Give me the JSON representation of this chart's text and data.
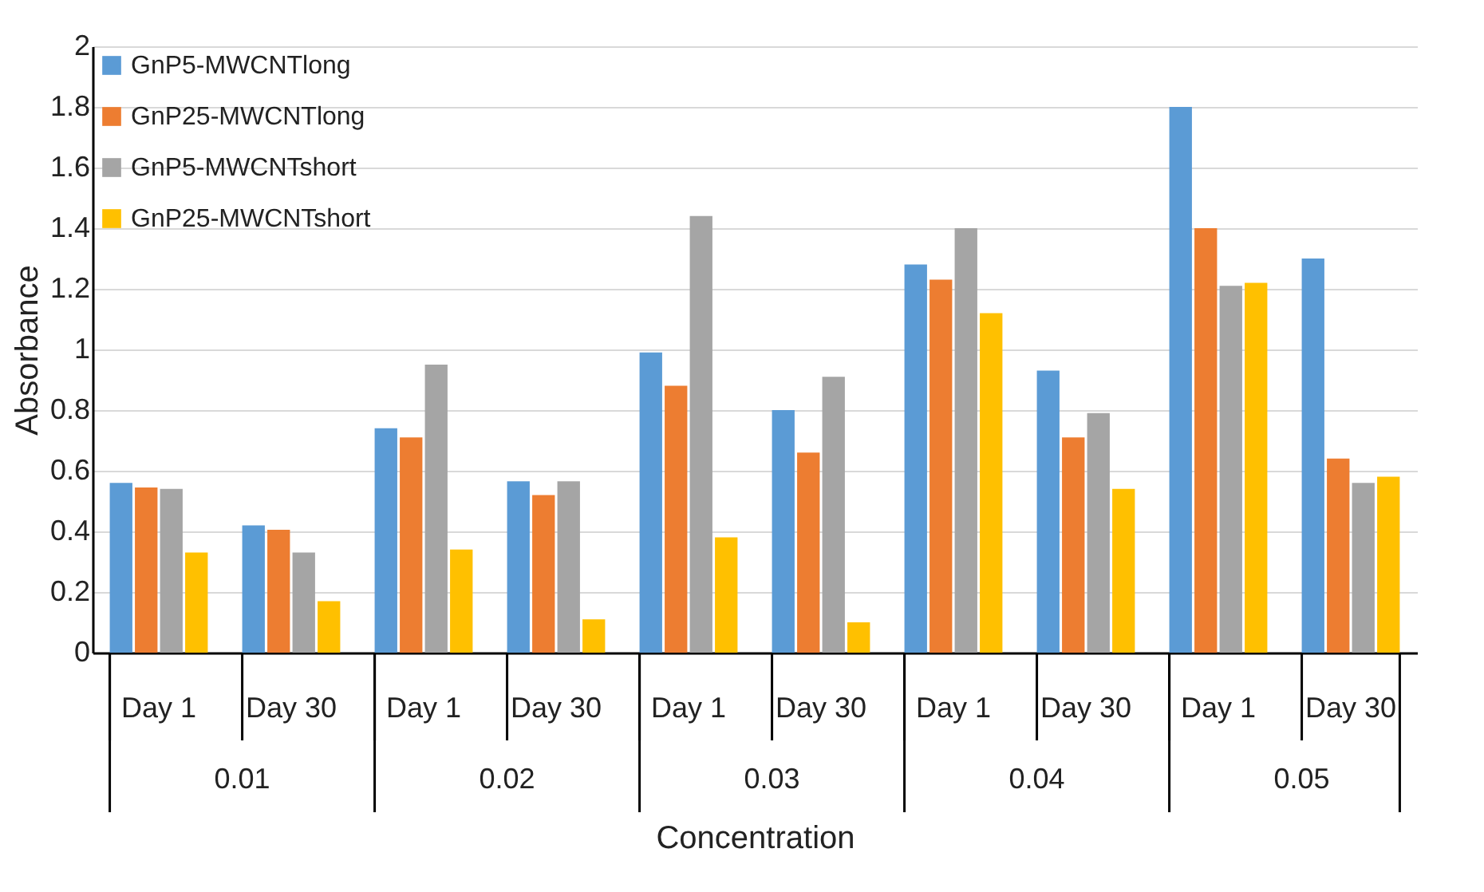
{
  "chart_data": {
    "type": "bar",
    "xlabel": "Concentration",
    "ylabel": "Absorbance",
    "categories": [
      "Day 1",
      "Day 30",
      "Day 1",
      "Day 30",
      "Day 1",
      "Day 30",
      "Day 1",
      "Day 30",
      "Day 1",
      "Day 30"
    ],
    "annotations": [
      "0.01",
      "0.02",
      "0.03",
      "0.04",
      "0.05"
    ],
    "series": [
      {
        "name": "GnP5-MWCNTlong",
        "color": "#5b9bd5",
        "values": [
          0.56,
          0.42,
          0.74,
          0.565,
          0.99,
          0.8,
          1.28,
          0.93,
          1.8,
          1.3
        ]
      },
      {
        "name": "GnP25-MWCNTlong",
        "color": "#ed7d31",
        "values": [
          0.545,
          0.405,
          0.71,
          0.52,
          0.88,
          0.66,
          1.23,
          0.71,
          1.4,
          0.64
        ]
      },
      {
        "name": "GnP5-MWCNTshort",
        "color": "#a5a5a5",
        "values": [
          0.54,
          0.33,
          0.95,
          0.565,
          1.44,
          0.91,
          1.4,
          0.79,
          1.21,
          0.56
        ]
      },
      {
        "name": "GnP25-MWCNTshort",
        "color": "#ffc000",
        "values": [
          0.33,
          0.17,
          0.34,
          0.11,
          0.38,
          0.1,
          1.12,
          0.54,
          1.22,
          0.58
        ]
      }
    ],
    "ylim": [
      0,
      2
    ],
    "yticks": [
      0,
      0.2,
      0.4,
      0.6,
      0.8,
      1,
      1.2,
      1.4,
      1.6,
      1.8,
      2
    ],
    "grid": "y",
    "legend": "top left"
  }
}
